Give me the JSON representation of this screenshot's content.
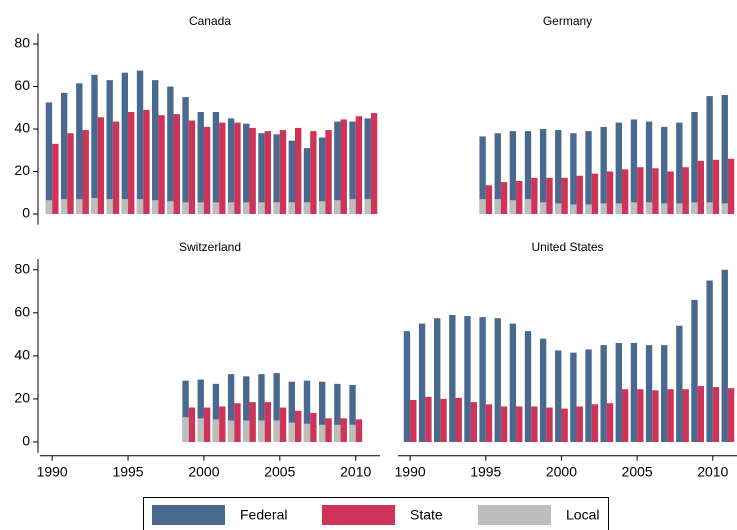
{
  "chart_data": {
    "type": "bar",
    "x": [
      1990,
      1991,
      1992,
      1993,
      1994,
      1995,
      1996,
      1997,
      1998,
      1999,
      2000,
      2001,
      2002,
      2003,
      2004,
      2005,
      2006,
      2007,
      2008,
      2009,
      2010,
      2011
    ],
    "xlim": [
      1989.2,
      2011.6
    ],
    "xticks": [
      1990,
      1995,
      2000,
      2005,
      2010
    ],
    "ylim": [
      -5,
      85
    ],
    "yticks": [
      0,
      20,
      40,
      60,
      80
    ],
    "series": [
      {
        "name": "Federal",
        "color": "#49698f"
      },
      {
        "name": "State",
        "color": "#cf3357"
      },
      {
        "name": "Local",
        "color": "#bdbdbd"
      }
    ],
    "panels": [
      {
        "title": "Canada",
        "series": [
          {
            "values": [
              52.5,
              57,
              61.5,
              65.5,
              63,
              66.5,
              67.5,
              63,
              60,
              55,
              48,
              48,
              45,
              42.5,
              38,
              37.5,
              34.5,
              31,
              36,
              43.5,
              43.5,
              45
            ]
          },
          {
            "values": [
              33,
              38,
              39.5,
              45.5,
              43.5,
              48,
              49,
              46.5,
              47,
              44,
              41,
              43,
              43,
              40.5,
              39,
              39.5,
              40.5,
              39,
              39.5,
              44.5,
              46,
              47.5
            ]
          },
          {
            "values": [
              6.5,
              7,
              7,
              7.5,
              7,
              7,
              7,
              6.5,
              6,
              5.5,
              5.5,
              5.5,
              5.5,
              5.5,
              5.5,
              5.5,
              5.5,
              5.5,
              6,
              6.5,
              7,
              7
            ]
          }
        ]
      },
      {
        "title": "Germany",
        "series": [
          {
            "values": [
              null,
              null,
              null,
              null,
              null,
              36.5,
              38,
              39,
              39,
              40,
              39.5,
              38,
              39,
              41,
              43,
              44.5,
              43.5,
              41,
              43,
              48,
              55.5,
              56
            ]
          },
          {
            "values": [
              null,
              null,
              null,
              null,
              null,
              13.5,
              15,
              15.5,
              17,
              17,
              17,
              18,
              19,
              20,
              21,
              22,
              21.5,
              20,
              22,
              25,
              25.5,
              26
            ]
          },
          {
            "values": [
              null,
              null,
              null,
              null,
              null,
              7,
              7,
              6.5,
              7,
              5.5,
              5,
              4.5,
              4.5,
              5,
              5,
              5.5,
              5.5,
              5,
              5,
              5.5,
              5.5,
              5
            ]
          }
        ]
      },
      {
        "title": "Switzerland",
        "series": [
          {
            "values": [
              null,
              null,
              null,
              null,
              null,
              null,
              null,
              null,
              null,
              28.5,
              29,
              27,
              31.5,
              30.5,
              31.5,
              32,
              28,
              28.5,
              28,
              27,
              26.5,
              null
            ]
          },
          {
            "values": [
              null,
              null,
              null,
              null,
              null,
              null,
              null,
              null,
              null,
              16,
              16,
              16.5,
              18,
              18.5,
              18.5,
              16,
              14.5,
              13.5,
              11,
              11,
              10.5,
              null
            ]
          },
          {
            "values": [
              null,
              null,
              null,
              null,
              null,
              null,
              null,
              null,
              null,
              11.5,
              11,
              10.5,
              10,
              10,
              10,
              10,
              9,
              8.5,
              8,
              8,
              8,
              null
            ]
          }
        ]
      },
      {
        "title": "United States",
        "series": [
          {
            "values": [
              51.5,
              55,
              57.5,
              59,
              58.5,
              58,
              57.5,
              55,
              51.5,
              48,
              42.5,
              41.5,
              43,
              45,
              46,
              46,
              45,
              45,
              54,
              66,
              75,
              80
            ]
          },
          {
            "values": [
              19.5,
              21,
              20,
              20.5,
              18.5,
              17.5,
              16.5,
              16.5,
              16.5,
              16,
              15.5,
              16.5,
              17.5,
              18,
              24.5,
              24.5,
              24,
              24.5,
              24.5,
              26,
              25.5,
              25
            ]
          },
          {
            "values": [
              null,
              null,
              null,
              null,
              null,
              null,
              null,
              null,
              null,
              null,
              null,
              null,
              null,
              null,
              null,
              null,
              null,
              null,
              null,
              null,
              null,
              null
            ]
          }
        ]
      }
    ]
  }
}
